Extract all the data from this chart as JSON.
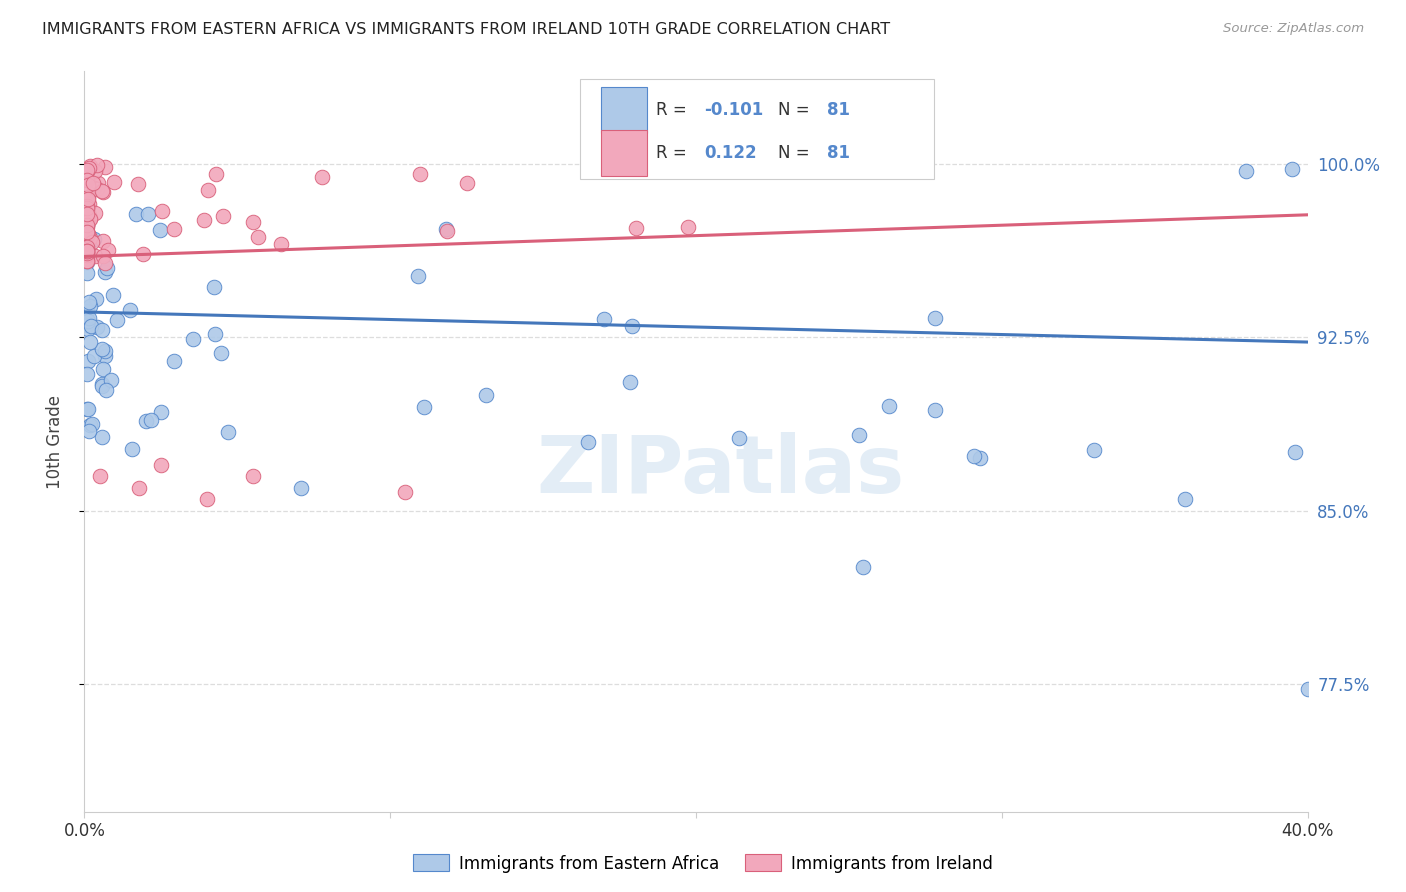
{
  "title": "IMMIGRANTS FROM EASTERN AFRICA VS IMMIGRANTS FROM IRELAND 10TH GRADE CORRELATION CHART",
  "source": "Source: ZipAtlas.com",
  "ylabel": "10th Grade",
  "ytick_labels": [
    "77.5%",
    "85.0%",
    "92.5%",
    "100.0%"
  ],
  "ytick_values": [
    0.775,
    0.85,
    0.925,
    1.0
  ],
  "xlim": [
    0.0,
    0.4
  ],
  "ylim": [
    0.72,
    1.04
  ],
  "legend_label_blue": "Immigrants from Eastern Africa",
  "legend_label_pink": "Immigrants from Ireland",
  "blue_face_color": "#aec9e8",
  "blue_edge_color": "#5588cc",
  "pink_face_color": "#f2a8bc",
  "pink_edge_color": "#d9607a",
  "blue_line_color": "#4477bb",
  "pink_line_color": "#d9607a",
  "scatter_size": 110,
  "watermark": "ZIPatlas",
  "title_color": "#222222",
  "ytick_color": "#4477bb",
  "background_color": "#ffffff",
  "grid_color": "#dddddd",
  "legend_r_blue": "-0.101",
  "legend_n_blue": "81",
  "legend_r_pink": "0.122",
  "legend_n_pink": "81"
}
